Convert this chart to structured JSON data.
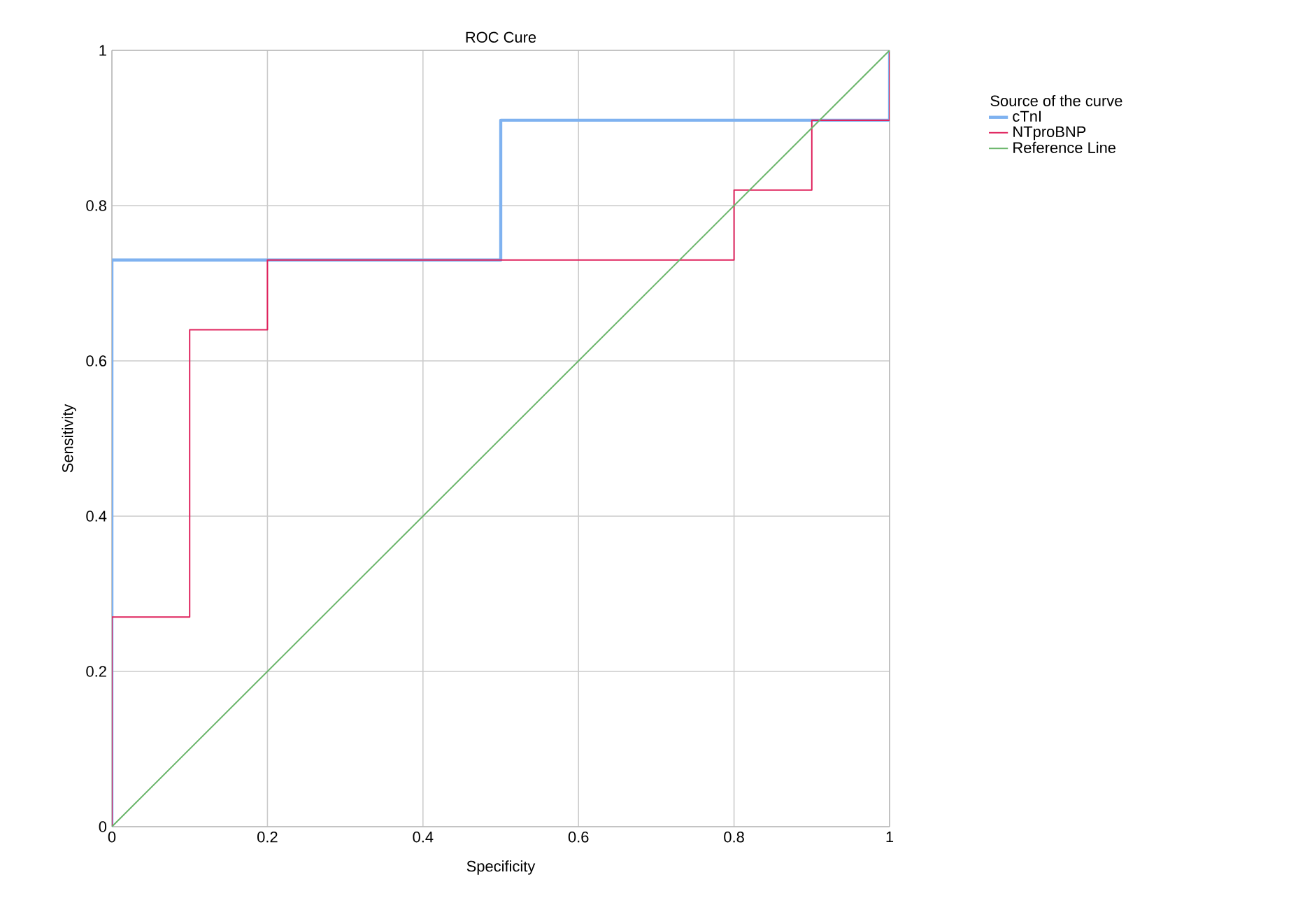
{
  "chart_data": {
    "type": "line",
    "title": "ROC Cure",
    "xlabel": "Specificity",
    "ylabel": "Sensitivity",
    "legend_title": "Source of the curve",
    "legend": "right",
    "grid": true,
    "xlim": [
      0,
      1
    ],
    "ylim": [
      0,
      1
    ],
    "xticks": [
      0,
      0.2,
      0.4,
      0.6,
      0.8,
      1
    ],
    "yticks": [
      0,
      0.2,
      0.4,
      0.6,
      0.8,
      1
    ],
    "series": [
      {
        "name": "cTnI",
        "color": "#7fb2f0",
        "x": [
          0,
          0,
          0.5,
          0.5,
          1,
          1
        ],
        "values": [
          0,
          0.73,
          0.73,
          0.91,
          0.91,
          1
        ]
      },
      {
        "name": "NTproBNP",
        "color": "#e0245e",
        "x": [
          0,
          0,
          0.1,
          0.1,
          0.2,
          0.2,
          0.8,
          0.8,
          0.9,
          0.9,
          1,
          1
        ],
        "values": [
          0,
          0.27,
          0.27,
          0.64,
          0.64,
          0.73,
          0.73,
          0.82,
          0.82,
          0.91,
          0.91,
          1
        ]
      },
      {
        "name": "Reference Line",
        "color": "#6ab56a",
        "x": [
          0,
          1
        ],
        "values": [
          0,
          1
        ]
      }
    ]
  }
}
